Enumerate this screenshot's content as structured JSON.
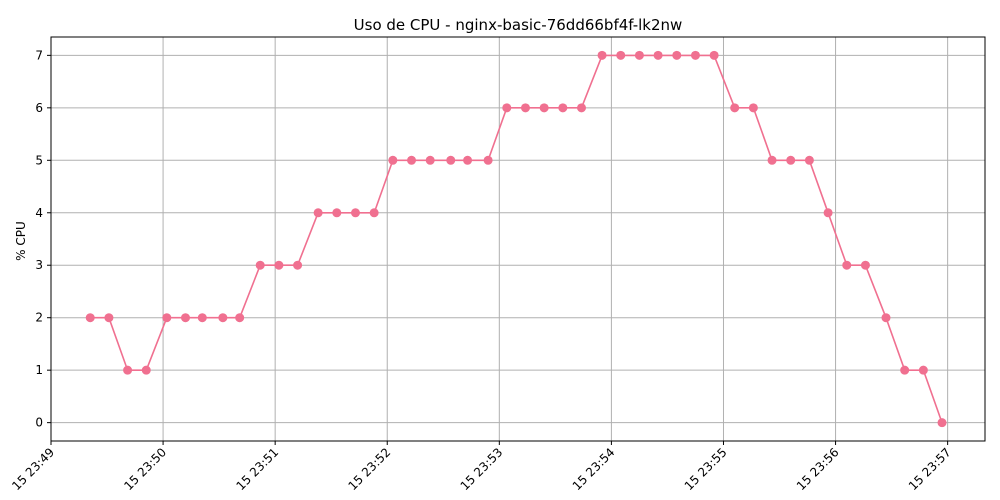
{
  "chart_data": {
    "type": "line",
    "title": "Uso de CPU - nginx-basic-76dd66bf4f-lk2nw",
    "xlabel": "",
    "ylabel": "% CPU",
    "grid": true,
    "color": "#f07090",
    "ylim": [
      -0.35,
      7.35
    ],
    "yticks": [
      0,
      1,
      2,
      3,
      4,
      5,
      6,
      7
    ],
    "xlim_minutes": [
      "23:49:00",
      "23:57:20"
    ],
    "xticks": [
      {
        "value": "23:49",
        "label": "15 23:49"
      },
      {
        "value": "23:50",
        "label": "15 23:50"
      },
      {
        "value": "23:51",
        "label": "15 23:51"
      },
      {
        "value": "23:52",
        "label": "15 23:52"
      },
      {
        "value": "23:53",
        "label": "15 23:53"
      },
      {
        "value": "23:54",
        "label": "15 23:54"
      },
      {
        "value": "23:55",
        "label": "15 23:55"
      },
      {
        "value": "23:56",
        "label": "15 23:56"
      },
      {
        "value": "23:57",
        "label": "15 23:57"
      }
    ],
    "series": [
      {
        "x": [
          "23:49:21",
          "23:49:31",
          "23:49:41",
          "23:49:51",
          "23:50:02",
          "23:50:12",
          "23:50:21",
          "23:50:32",
          "23:50:41",
          "23:50:52",
          "23:51:02",
          "23:51:12",
          "23:51:23",
          "23:51:33",
          "23:51:43",
          "23:51:53",
          "23:52:03",
          "23:52:13",
          "23:52:23",
          "23:52:34",
          "23:52:43",
          "23:52:54",
          "23:53:04",
          "23:53:14",
          "23:53:24",
          "23:53:34",
          "23:53:44",
          "23:53:55",
          "23:54:05",
          "23:54:15",
          "23:54:25",
          "23:54:35",
          "23:54:45",
          "23:54:55",
          "23:55:06",
          "23:55:16",
          "23:55:26",
          "23:55:36",
          "23:55:46",
          "23:55:56",
          "23:56:06",
          "23:56:16",
          "23:56:27",
          "23:56:37",
          "23:56:47",
          "23:56:57"
        ],
        "values": [
          2,
          2,
          1,
          1,
          2,
          2,
          2,
          2,
          2,
          3,
          3,
          3,
          4,
          4,
          4,
          4,
          5,
          5,
          5,
          5,
          5,
          5,
          6,
          6,
          6,
          6,
          6,
          7,
          7,
          7,
          7,
          7,
          7,
          7,
          6,
          6,
          5,
          5,
          5,
          4,
          3,
          3,
          2,
          1,
          1,
          0
        ]
      }
    ]
  }
}
